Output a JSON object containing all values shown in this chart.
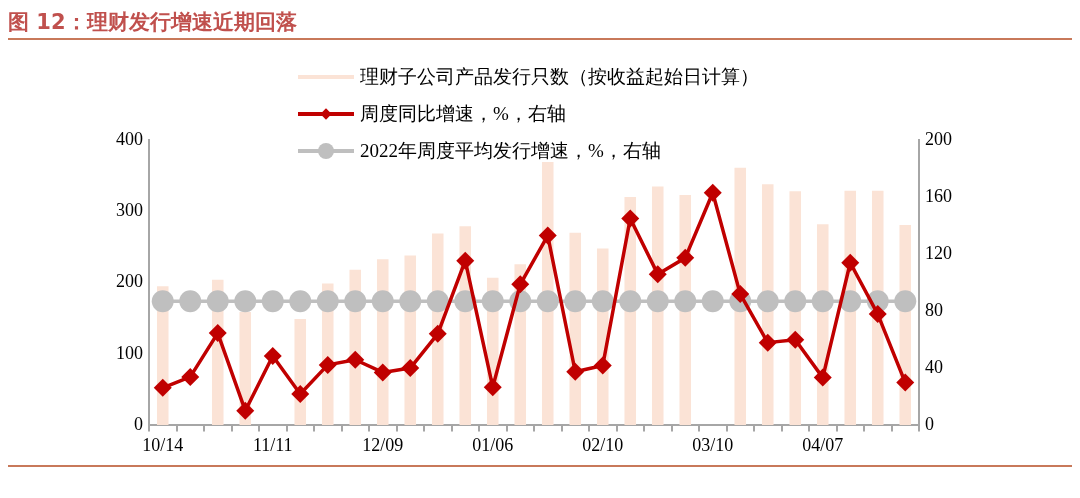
{
  "chart_data": {
    "type": "bar",
    "title": "图 12：理财发行增速近期回落",
    "categories": [
      "10/14",
      null,
      null,
      null,
      "11/11",
      null,
      null,
      null,
      "12/09",
      null,
      null,
      null,
      "01/06",
      null,
      null,
      null,
      "02/10",
      null,
      null,
      null,
      "03/10",
      null,
      null,
      null,
      "04/07",
      null,
      null,
      null
    ],
    "series": [
      {
        "name": "理财子公司产品发行只数（按收益起始日计算）",
        "color": "#fbe3d6",
        "values": [
          195,
          null,
          204,
          159,
          null,
          149,
          199,
          218,
          233,
          238,
          269,
          279,
          207,
          226,
          369,
          270,
          248,
          320,
          335,
          323,
          null,
          361,
          338,
          328,
          282,
          329,
          329,
          281
        ]
      },
      {
        "name": "周度同比增速，%，右轴",
        "type": "line",
        "axis": "y2",
        "color": "#c00000",
        "marker": "diamond",
        "values": [
          26.3,
          34,
          64.7,
          10.3,
          48.6,
          22,
          42.4,
          46,
          37.1,
          40.2,
          64.2,
          115.4,
          26.8,
          98.9,
          133,
          37.6,
          42,
          145,
          106,
          117.4,
          163,
          92,
          58,
          60,
          33.5,
          114,
          78,
          30
        ]
      },
      {
        "name": "2022年周度平均发行增速，%，右轴",
        "type": "line",
        "axis": "y2",
        "color": "#bfbfbf",
        "marker": "circle",
        "values": [
          87,
          87,
          87,
          87,
          87,
          87,
          87,
          87,
          87,
          87,
          87,
          87,
          87,
          87,
          87,
          87,
          87,
          87,
          87,
          87,
          87,
          87,
          87,
          87,
          87,
          87,
          87,
          87
        ]
      }
    ],
    "ylim": [
      0,
      400
    ],
    "yticks": [
      0,
      100,
      200,
      300,
      400
    ],
    "y2lim": [
      0,
      200
    ],
    "y2ticks": [
      0,
      40,
      80,
      120,
      160,
      200
    ],
    "grid": false,
    "legend": "top"
  }
}
